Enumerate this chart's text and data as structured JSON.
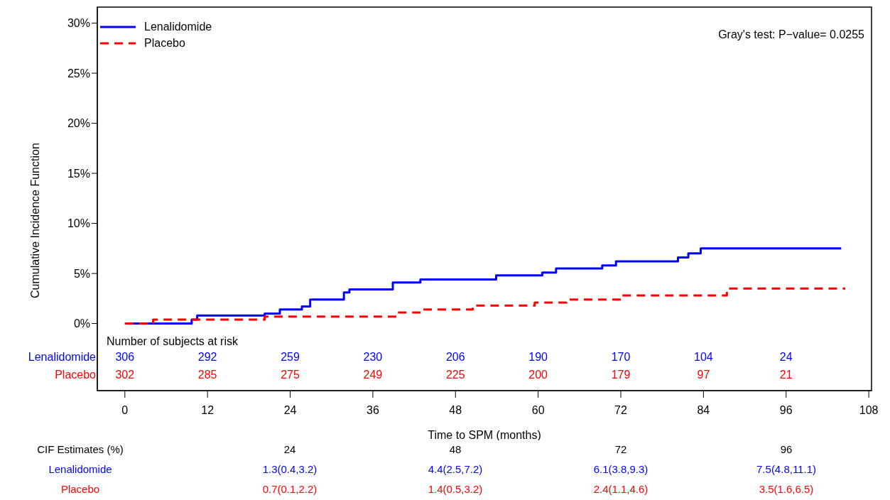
{
  "chart_data": {
    "type": "step",
    "xlabel": "Time to SPM (months)",
    "ylabel": "Cumulative Incidence Function",
    "xlim": [
      -4,
      108.4
    ],
    "xticks": [
      0,
      12,
      24,
      36,
      48,
      60,
      72,
      84,
      96,
      108
    ],
    "ylim": [
      -6.7,
      31.6
    ],
    "yticks": [
      {
        "value": 0,
        "label": "0%"
      },
      {
        "value": 5,
        "label": "5%"
      },
      {
        "value": 10,
        "label": "10%"
      },
      {
        "value": 15,
        "label": "15%"
      },
      {
        "value": 20,
        "label": "20%"
      },
      {
        "value": 25,
        "label": "25%"
      },
      {
        "value": 30,
        "label": "30%"
      }
    ],
    "legend": "top left",
    "series": [
      {
        "name": "Lenalidomide",
        "color": "#0000ff",
        "line_style": "solid",
        "x": [
          0,
          9.7,
          10.5,
          20.3,
          22.5,
          25.7,
          26.9,
          31.8,
          32.6,
          38.9,
          42.9,
          53.9,
          60.6,
          62.6,
          69.3,
          71.3,
          80.3,
          81.8,
          83.6,
          104
        ],
        "values": [
          0,
          0.4,
          0.8,
          1.0,
          1.4,
          1.7,
          2.4,
          3.1,
          3.4,
          4.1,
          4.4,
          4.8,
          5.1,
          5.5,
          5.8,
          6.2,
          6.6,
          7.0,
          7.5,
          7.5
        ]
      },
      {
        "name": "Placebo",
        "color": "#ff0000",
        "line_style": "dashed",
        "x": [
          0,
          4.1,
          20.3,
          39.6,
          43.3,
          50.5,
          59.5,
          64.1,
          72.2,
          87.4,
          104.6
        ],
        "values": [
          0,
          0.4,
          0.7,
          1.1,
          1.4,
          1.8,
          2.1,
          2.4,
          2.8,
          3.5,
          3.5
        ]
      }
    ],
    "annotations": [
      "Gray's test: P−value= 0.0255",
      "CIF Estimates (%)",
      "24",
      "48",
      "72",
      "96",
      "1.3(0.4,3.2)",
      "4.4(2.5,7.2)",
      "6.1(3.8,9.3)",
      "7.5(4.8,11.1)",
      "0.7(0.1,2.2)",
      "1.4(0.5,3.2)",
      "2.4(1.1,4.6)",
      "3.5(1.6,6.5)",
      "Number of subjects at risk",
      "306",
      "292",
      "259",
      "230",
      "206",
      "190",
      "170",
      "104",
      "24",
      "302",
      "285",
      "275",
      "249",
      "225",
      "200",
      "179",
      "97",
      "21"
    ]
  }
}
